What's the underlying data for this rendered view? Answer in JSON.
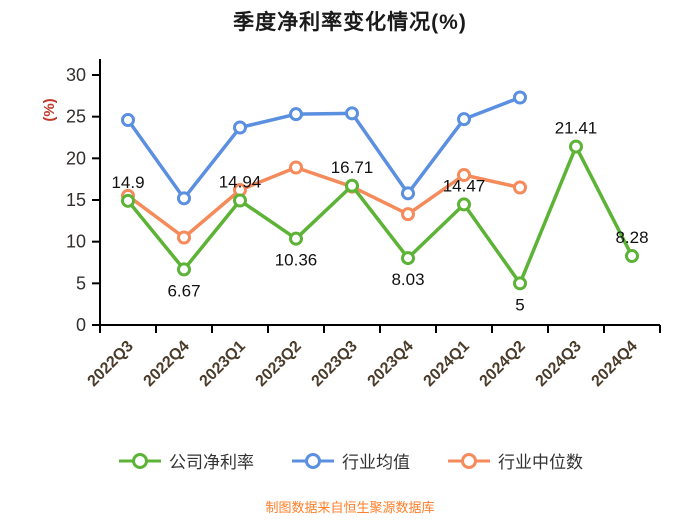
{
  "title": "季度净利率变化情况(%)",
  "footer": "制图数据来自恒生聚源数据库",
  "chart_data": {
    "type": "line",
    "title": "季度净利率变化情况(%)",
    "categories": [
      "2022Q3",
      "2022Q4",
      "2023Q1",
      "2023Q2",
      "2023Q3",
      "2023Q4",
      "2024Q1",
      "2024Q2",
      "2024Q3",
      "2024Q4"
    ],
    "xlabel": "",
    "ylabel": "(%)",
    "ylim": [
      0,
      30
    ],
    "ytick_step": 5,
    "grid": false,
    "legend_position": "bottom",
    "series": [
      {
        "name": "公司净利率",
        "color": "#5cb336",
        "values": [
          14.9,
          6.67,
          14.94,
          10.36,
          16.71,
          8.03,
          14.47,
          5,
          21.41,
          8.28
        ],
        "labels": [
          "14.9",
          "6.67",
          "14.94",
          "10.36",
          "16.71",
          "8.03",
          "14.47",
          "5",
          "21.41",
          "8.28"
        ],
        "label_positions": [
          "above",
          "below",
          "above",
          "below",
          "above",
          "below",
          "above",
          "below",
          "above",
          "above"
        ]
      },
      {
        "name": "行业均值",
        "color": "#5b8fe0",
        "values": [
          24.6,
          15.2,
          23.7,
          25.3,
          25.4,
          15.8,
          24.7,
          27.3,
          null,
          null
        ]
      },
      {
        "name": "行业中位数",
        "color": "#f58a5a",
        "values": [
          15.5,
          10.5,
          16.2,
          18.9,
          16.6,
          13.3,
          18.0,
          16.5,
          null,
          null
        ]
      }
    ]
  },
  "colors": {
    "title": "#1a1a1a",
    "axis": "#000000",
    "tick_label": "#33302e",
    "x_label": "#4a3b2a",
    "ylabel_color": "#c0392b",
    "data_label": "#111111",
    "footer": "#ff7e29",
    "legend_text": "#333333"
  }
}
